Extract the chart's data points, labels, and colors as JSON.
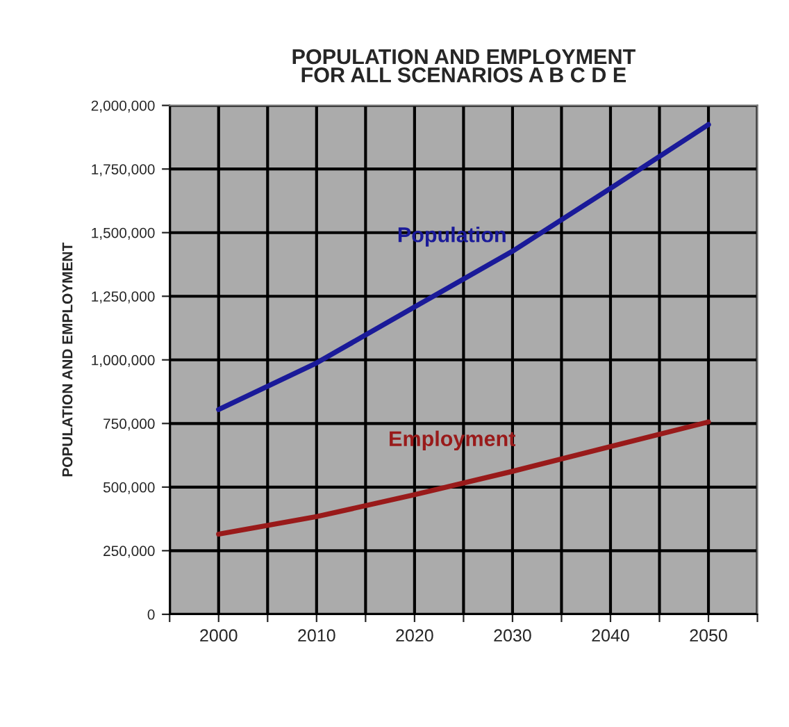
{
  "chart_data": {
    "type": "line",
    "title": "POPULATION AND EMPLOYMENT\nFOR ALL SCENARIOS A B C D E",
    "ylabel": "POPULATION AND EMPLOYMENT",
    "x": [
      2000,
      2010,
      2020,
      2030,
      2040,
      2050
    ],
    "series": [
      {
        "name": "Population",
        "color": "#1a1a99",
        "values": [
          805000,
          988000,
          1208000,
          1427000,
          1674000,
          1925000
        ]
      },
      {
        "name": "Employment",
        "color": "#991a1a",
        "values": [
          315000,
          384000,
          470000,
          562000,
          659000,
          756000
        ]
      }
    ],
    "xlim": [
      1995,
      2055
    ],
    "xticks": [
      {
        "value": 1995,
        "label": null
      },
      2000,
      {
        "value": 2005,
        "label": null
      },
      2010,
      {
        "value": 2015,
        "label": null
      },
      2020,
      {
        "value": 2025,
        "label": null
      },
      2030,
      {
        "value": 2035,
        "label": null
      },
      2040,
      {
        "value": 2045,
        "label": null
      },
      2050,
      {
        "value": 2055,
        "label": null
      }
    ],
    "ylim": [
      0,
      2000000
    ],
    "yticks": [
      0,
      {
        "value": 250000,
        "label": "250,000"
      },
      {
        "value": 500000,
        "label": "500,000"
      },
      {
        "value": 750000,
        "label": "750,000"
      },
      {
        "value": 1000000,
        "label": "1,000,000"
      },
      {
        "value": 1250000,
        "label": "1,250,000"
      },
      {
        "value": 1500000,
        "label": "1,500,000"
      },
      {
        "value": 1750000,
        "label": "1,750,000"
      },
      {
        "value": 2000000,
        "label": "2,000,000"
      }
    ],
    "grid": true,
    "legend": false,
    "marker": "none",
    "line_style": "solid"
  }
}
